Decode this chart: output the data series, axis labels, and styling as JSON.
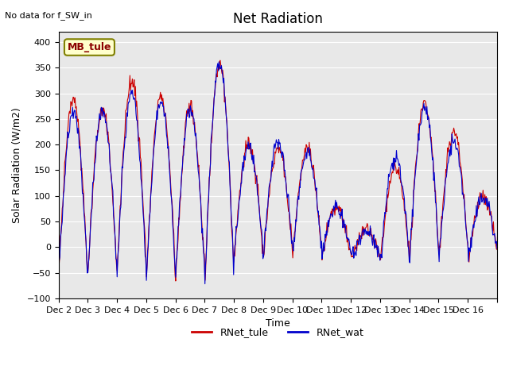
{
  "title": "Net Radiation",
  "xlabel": "Time",
  "ylabel": "Solar Radiation (W/m2)",
  "ylim": [
    -100,
    420
  ],
  "yticks": [
    -100,
    -50,
    0,
    50,
    100,
    150,
    200,
    250,
    300,
    350,
    400
  ],
  "note": "No data for f_SW_in",
  "legend_label1": "RNet_tule",
  "legend_label2": "RNet_wat",
  "color1": "#cc0000",
  "color2": "#0000cc",
  "bg_color": "#e8e8e8",
  "legend_box_color": "#ffffcc",
  "legend_box_text": "MB_tule",
  "xtick_labels": [
    "Dec 2",
    "Dec 3",
    "Dec 4",
    "Dec 5",
    "Dec 6",
    "Dec 7",
    "Dec 8",
    "Dec 9",
    "Dec 10",
    "Dec 11",
    "Dec 12",
    "Dec 13",
    "Dec 14",
    "Dec 15",
    "Dec 16"
  ],
  "num_days": 15,
  "pts_per_day": 48
}
